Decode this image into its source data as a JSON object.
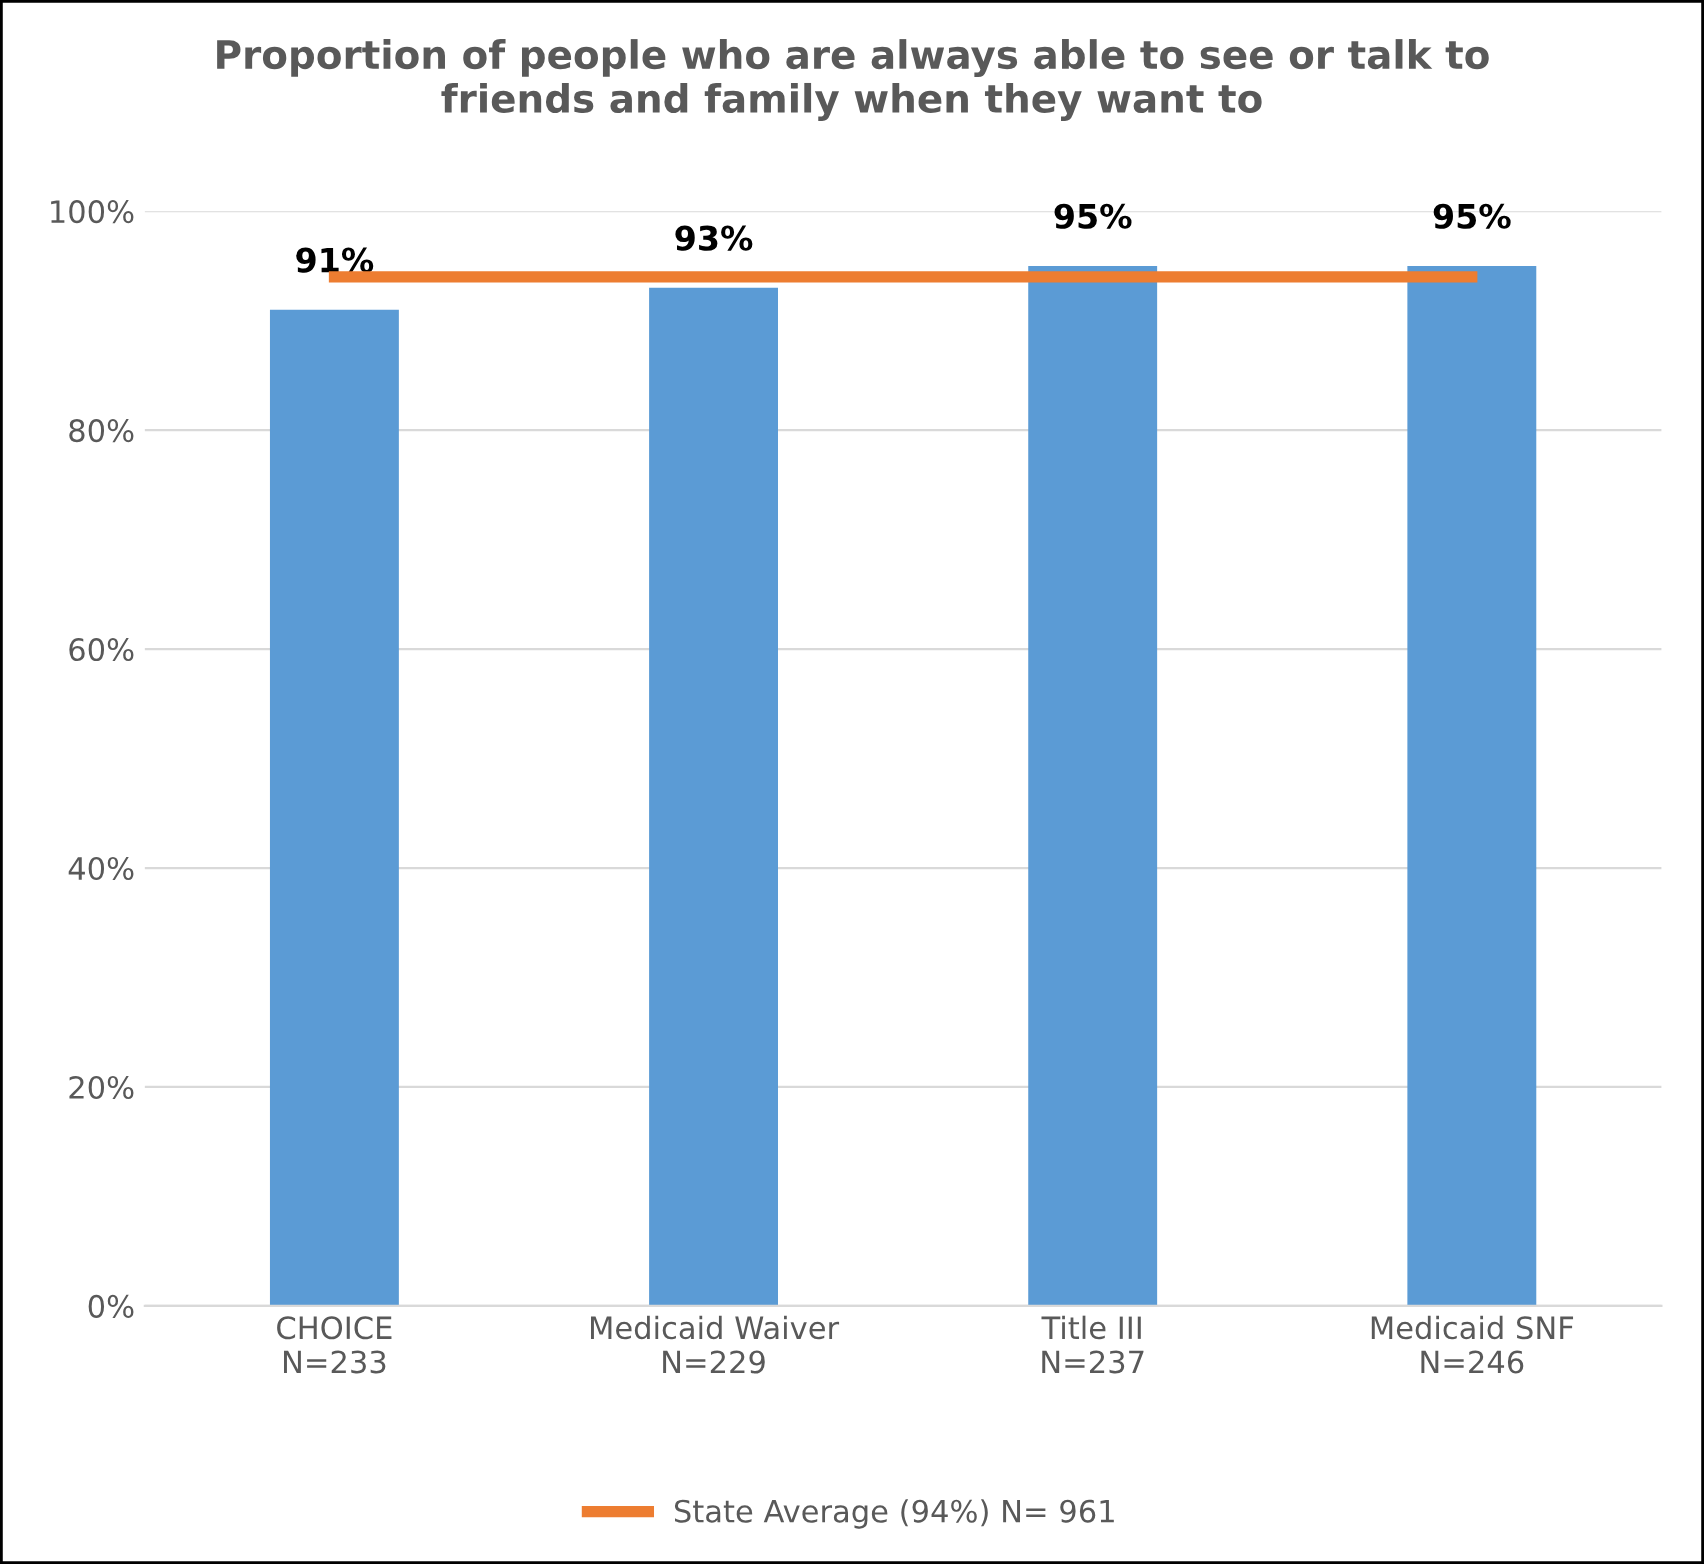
{
  "chart_data": {
    "type": "bar",
    "title": "Proportion of people who are always able to see or talk to\nfriends and family when they want to",
    "categories": [
      "CHOICE\nN=233",
      "Medicaid Waiver\nN=229",
      "Title III\nN=237",
      "Medicaid SNF\nN=246"
    ],
    "series": [
      {
        "color": "#5b9bd5",
        "values": [
          91,
          93,
          95,
          95
        ],
        "value_labels": [
          "91%",
          "93%",
          "95%",
          "95%"
        ]
      },
      {
        "type": "line",
        "name": "State Average (94%) N= 961",
        "color": "#ed7d31",
        "values": [
          94,
          94,
          94,
          94
        ]
      }
    ],
    "ylim": [
      0,
      100
    ],
    "yticks": [
      {
        "value": 0,
        "label": "0%"
      },
      {
        "value": 20,
        "label": "20%"
      },
      {
        "value": 40,
        "label": "40%"
      },
      {
        "value": 60,
        "label": "60%"
      },
      {
        "value": 80,
        "label": "80%"
      },
      {
        "value": 100,
        "label": "100%"
      }
    ],
    "grid": "y",
    "legend": "bottom"
  }
}
